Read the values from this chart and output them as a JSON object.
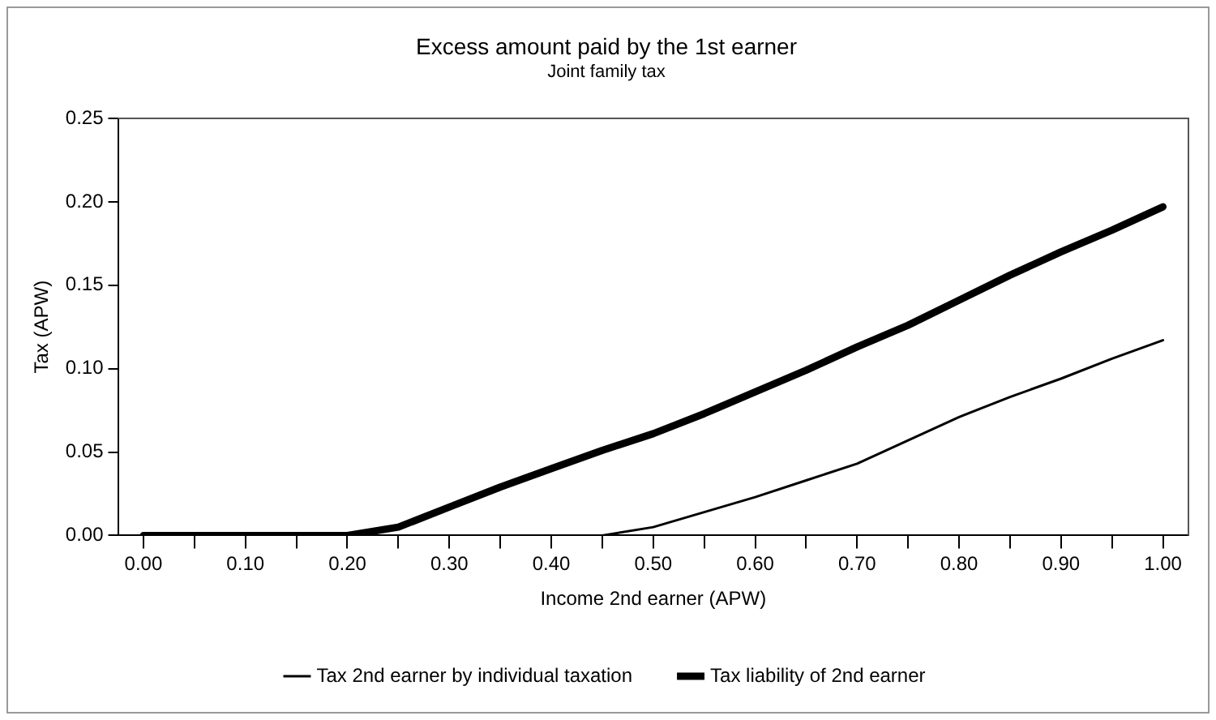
{
  "chart_data": {
    "type": "line",
    "title": "Excess amount paid by the 1st earner",
    "subtitle": "Joint family tax",
    "xlabel": "Income 2nd earner (APW)",
    "ylabel": "Tax (APW)",
    "x": [
      0,
      0.05,
      0.1,
      0.15,
      0.2,
      0.25,
      0.3,
      0.35,
      0.4,
      0.45,
      0.5,
      0.55,
      0.6,
      0.65,
      0.7,
      0.75,
      0.8,
      0.85,
      0.9,
      0.95,
      1.0
    ],
    "series": [
      {
        "name": "Tax 2nd earner by individual taxation",
        "color": "#000000",
        "values": [
          0,
          0,
          0,
          0,
          0,
          0,
          0,
          0,
          0,
          0,
          0.005,
          0.014,
          0.023,
          0.033,
          0.043,
          0.057,
          0.071,
          0.083,
          0.094,
          0.106,
          0.117
        ]
      },
      {
        "name": "Tax liability of 2nd earner",
        "color": "#000000",
        "values": [
          0,
          0,
          0,
          0,
          0,
          0.005,
          0.017,
          0.029,
          0.04,
          0.051,
          0.061,
          0.073,
          0.086,
          0.099,
          0.113,
          0.126,
          0.141,
          0.156,
          0.17,
          0.183,
          0.197
        ]
      }
    ],
    "xlim": [
      -0.025,
      1.025
    ],
    "xticks": [
      {
        "value": 0,
        "label": "0.00"
      },
      {
        "value": 0.05,
        "label": null
      },
      {
        "value": 0.1,
        "label": "0.10"
      },
      {
        "value": 0.15,
        "label": null
      },
      {
        "value": 0.2,
        "label": "0.20"
      },
      {
        "value": 0.25,
        "label": null
      },
      {
        "value": 0.3,
        "label": "0.30"
      },
      {
        "value": 0.35,
        "label": null
      },
      {
        "value": 0.4,
        "label": "0.40"
      },
      {
        "value": 0.45,
        "label": null
      },
      {
        "value": 0.5,
        "label": "0.50"
      },
      {
        "value": 0.55,
        "label": null
      },
      {
        "value": 0.6,
        "label": "0.60"
      },
      {
        "value": 0.65,
        "label": null
      },
      {
        "value": 0.7,
        "label": "0.70"
      },
      {
        "value": 0.75,
        "label": null
      },
      {
        "value": 0.8,
        "label": "0.80"
      },
      {
        "value": 0.85,
        "label": null
      },
      {
        "value": 0.9,
        "label": "0.90"
      },
      {
        "value": 0.95,
        "label": null
      },
      {
        "value": 1.0,
        "label": "1.00"
      }
    ],
    "ylim": [
      0,
      0.25
    ],
    "yticks": [
      {
        "value": 0,
        "label": "0.00"
      },
      {
        "value": 0.05,
        "label": "0.05"
      },
      {
        "value": 0.1,
        "label": "0.10"
      },
      {
        "value": 0.15,
        "label": "0.15"
      },
      {
        "value": 0.2,
        "label": "0.20"
      },
      {
        "value": 0.25,
        "label": "0.25"
      }
    ],
    "grid": false,
    "legend": "bottom",
    "marker": "none",
    "line_style": "solid"
  }
}
